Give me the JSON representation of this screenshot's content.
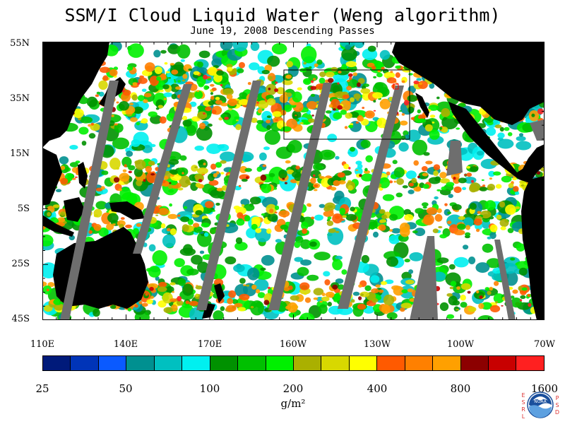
{
  "title": "SSM/I Cloud Liquid Water (Weng algorithm)",
  "subtitle": "June 19, 2008  Descending Passes",
  "lat_labels": [
    "55N",
    "35N",
    "15N",
    "5S",
    "25S",
    "45S"
  ],
  "lon_labels": [
    "110E",
    "140E",
    "170E",
    "160W",
    "130W",
    "100W",
    "70W"
  ],
  "colorbar": {
    "labels": [
      "25",
      "50",
      "100",
      "200",
      "400",
      "800",
      "1600"
    ],
    "units": "g/m²",
    "colors": [
      "#001a7a",
      "#0034b8",
      "#0a5aff",
      "#009090",
      "#00c0c0",
      "#00f0f0",
      "#009100",
      "#00c000",
      "#00f000",
      "#aab000",
      "#d8d800",
      "#ffff00",
      "#ff5a00",
      "#ff8000",
      "#ffa000",
      "#8c0000",
      "#c80000",
      "#ff2020"
    ]
  },
  "logo": {
    "text": "NOAA",
    "left_letters": [
      "E",
      "S",
      "R",
      "L"
    ],
    "right_letters": [
      "P",
      "S",
      "D"
    ]
  },
  "colors": {
    "land": "#000000",
    "missing": "#6e6e6e",
    "clear": "#ffffff"
  }
}
